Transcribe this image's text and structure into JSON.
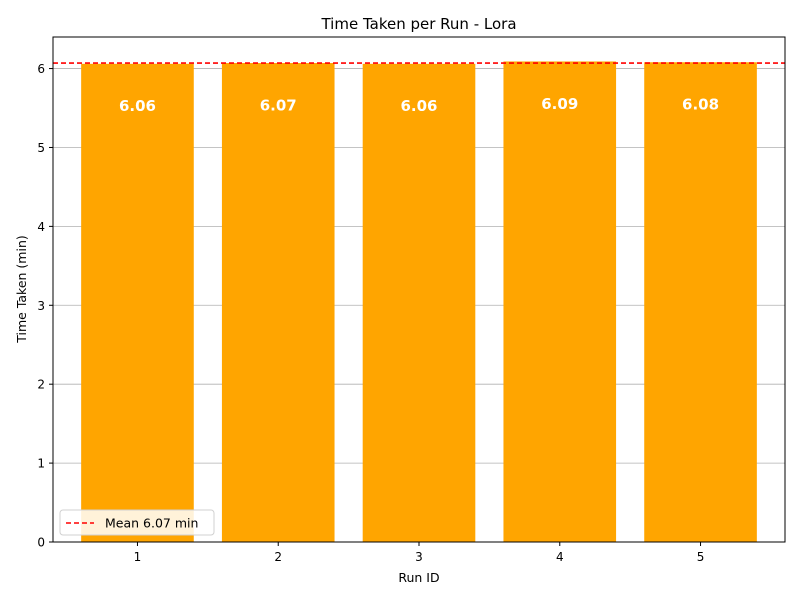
{
  "chart_data": {
    "type": "bar",
    "title": "Time Taken per Run - Lora",
    "xlabel": "Run ID",
    "ylabel": "Time Taken (min)",
    "categories": [
      "1",
      "2",
      "3",
      "4",
      "5"
    ],
    "values": [
      6.06,
      6.07,
      6.06,
      6.09,
      6.08
    ],
    "data_labels": [
      "6.06",
      "6.07",
      "6.06",
      "6.09",
      "6.08"
    ],
    "ylim": [
      0,
      6.4
    ],
    "yticks": [
      0,
      1,
      2,
      3,
      4,
      5,
      6
    ],
    "grid": "horizontal",
    "mean_line": {
      "value": 6.07,
      "label": "Mean 6.07 min"
    },
    "legend_position": "lower-left",
    "colors": {
      "bar": "#FFA500",
      "mean_line": "#FF0000",
      "bar_label": "#FFFFFF",
      "grid": "#B0B0B0"
    }
  }
}
